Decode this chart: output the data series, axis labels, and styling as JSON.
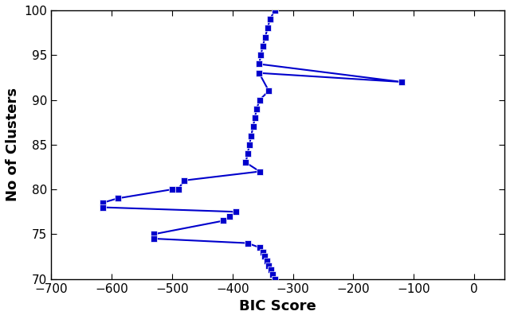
{
  "xlabel": "BIC Score",
  "ylabel": "No of Clusters",
  "xlim": [
    -700,
    50
  ],
  "ylim": [
    70,
    100
  ],
  "xticks": [
    -700,
    -600,
    -500,
    -400,
    -300,
    -200,
    -100,
    0
  ],
  "yticks": [
    70,
    75,
    80,
    85,
    90,
    95,
    100
  ],
  "color": "#0000CC",
  "linewidth": 1.5,
  "markersize": 6,
  "points": [
    [
      -330,
      100
    ],
    [
      -338,
      99
    ],
    [
      -342,
      98
    ],
    [
      -346,
      97
    ],
    [
      -350,
      96
    ],
    [
      -353,
      95
    ],
    [
      -356,
      94
    ],
    [
      -120,
      92
    ],
    [
      -356,
      93
    ],
    [
      -340,
      91
    ],
    [
      -355,
      90
    ],
    [
      -360,
      89
    ],
    [
      -363,
      88
    ],
    [
      -366,
      87
    ],
    [
      -369,
      86
    ],
    [
      -372,
      85
    ],
    [
      -375,
      84
    ],
    [
      -378,
      83
    ],
    [
      -355,
      82
    ],
    [
      -480,
      81
    ],
    [
      -490,
      80
    ],
    [
      -500,
      80
    ],
    [
      -590,
      79
    ],
    [
      -615,
      78.5
    ],
    [
      -615,
      78
    ],
    [
      -395,
      77.5
    ],
    [
      -405,
      77
    ],
    [
      -415,
      76.5
    ],
    [
      -530,
      75
    ],
    [
      -530,
      74.5
    ],
    [
      -375,
      74
    ],
    [
      -355,
      73.5
    ],
    [
      -350,
      73
    ],
    [
      -347,
      72.5
    ],
    [
      -343,
      72
    ],
    [
      -340,
      71.5
    ],
    [
      -337,
      71
    ],
    [
      -334,
      70.5
    ],
    [
      -330,
      70
    ]
  ]
}
